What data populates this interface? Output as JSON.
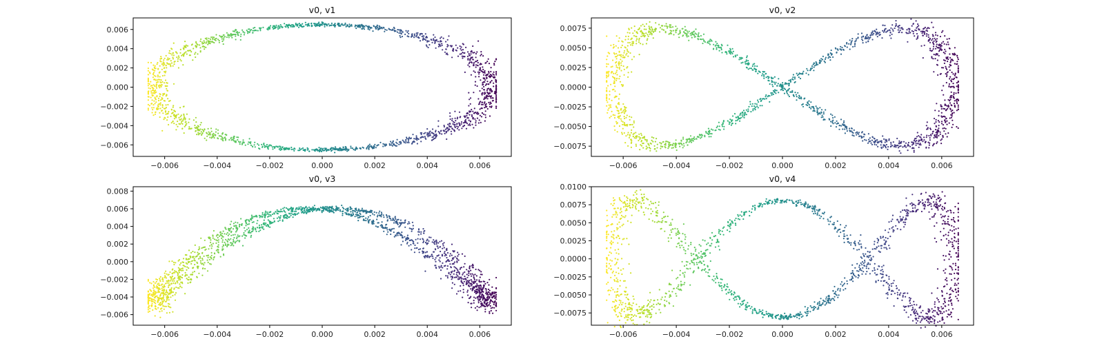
{
  "figure": {
    "colormap": "viridis",
    "point_color_encodes": "v0 (high = purple, low = yellow)"
  },
  "chart_data": [
    {
      "type": "scatter",
      "title": "v0, v1",
      "xlim": [
        -0.0072,
        0.0072
      ],
      "ylim": [
        -0.0072,
        0.0072
      ],
      "xticks": [
        -0.006,
        -0.004,
        -0.002,
        0.0,
        0.002,
        0.004,
        0.006
      ],
      "xtick_labels": [
        "−0.006",
        "−0.004",
        "−0.002",
        "0.000",
        "0.002",
        "0.004",
        "0.006"
      ],
      "yticks": [
        -0.006,
        -0.004,
        -0.002,
        0.0,
        0.002,
        0.004,
        0.006
      ],
      "ytick_labels": [
        "−0.006",
        "−0.004",
        "−0.002",
        "0.000",
        "0.002",
        "0.004",
        "0.006"
      ],
      "curve": {
        "kind": "ellipse",
        "x_center": 0.0,
        "x_amp": 0.0064,
        "y_amp": 0.0065,
        "freq": 1,
        "phase": 1.5708,
        "noise_x": 0.00018,
        "noise_y": 0.00035
      },
      "n_points": 1800
    },
    {
      "type": "scatter",
      "title": "v0, v2",
      "xlim": [
        -0.0072,
        0.0072
      ],
      "ylim": [
        -0.0088,
        0.0088
      ],
      "xticks": [
        -0.006,
        -0.004,
        -0.002,
        0.0,
        0.002,
        0.004,
        0.006
      ],
      "xtick_labels": [
        "−0.006",
        "−0.004",
        "−0.002",
        "0.000",
        "0.002",
        "0.004",
        "0.006"
      ],
      "yticks": [
        -0.0075,
        -0.005,
        -0.0025,
        0.0,
        0.0025,
        0.005,
        0.0075
      ],
      "ytick_labels": [
        "−0.0075",
        "−0.0050",
        "−0.0025",
        "0.0000",
        "0.0025",
        "0.0050",
        "0.0075"
      ],
      "curve": {
        "kind": "figure-eight",
        "x_center": 0.0,
        "x_amp": 0.0064,
        "y_amp": 0.0078,
        "freq": 2,
        "phase": 0.0,
        "noise_x": 0.00018,
        "noise_y": 0.0005
      },
      "n_points": 1800
    },
    {
      "type": "scatter",
      "title": "v0, v3",
      "xlim": [
        -0.0072,
        0.0072
      ],
      "ylim": [
        -0.0072,
        0.0085
      ],
      "xticks": [
        -0.006,
        -0.004,
        -0.002,
        0.0,
        0.002,
        0.004,
        0.006
      ],
      "xtick_labels": [
        "−0.006",
        "−0.004",
        "−0.002",
        "0.000",
        "0.002",
        "0.004",
        "0.006"
      ],
      "yticks": [
        -0.006,
        -0.004,
        -0.002,
        0.0,
        0.002,
        0.004,
        0.006,
        0.008
      ],
      "ytick_labels": [
        "−0.006",
        "−0.004",
        "−0.002",
        "0.000",
        "0.002",
        "0.004",
        "0.006",
        "0.008"
      ],
      "curve": {
        "kind": "arch-loop",
        "x_center": 0.0,
        "x_amp": 0.0064,
        "y_amp": 0.0072,
        "freq": 3,
        "phase": 1.5708,
        "noise_x": 0.00018,
        "noise_y": 0.0004
      },
      "n_points": 1800
    },
    {
      "type": "scatter",
      "title": "v0, v4",
      "xlim": [
        -0.0072,
        0.0072
      ],
      "ylim": [
        -0.0092,
        0.01
      ],
      "xticks": [
        -0.006,
        -0.004,
        -0.002,
        0.0,
        0.002,
        0.004,
        0.006
      ],
      "xtick_labels": [
        "−0.006",
        "−0.004",
        "−0.002",
        "0.000",
        "0.002",
        "0.004",
        "0.006"
      ],
      "yticks": [
        -0.0075,
        -0.005,
        -0.0025,
        0.0,
        0.0025,
        0.005,
        0.0075,
        0.01
      ],
      "ytick_labels": [
        "−0.0075",
        "−0.0050",
        "−0.0025",
        "0.0000",
        "0.0025",
        "0.0050",
        "0.0075",
        "0.0100"
      ],
      "curve": {
        "kind": "multi-lobe",
        "x_center": 0.0,
        "x_amp": 0.0064,
        "y_amp": 0.0085,
        "freq": 4,
        "phase": 0.0,
        "noise_x": 0.00018,
        "noise_y": 0.0006
      },
      "n_points": 1800
    }
  ]
}
